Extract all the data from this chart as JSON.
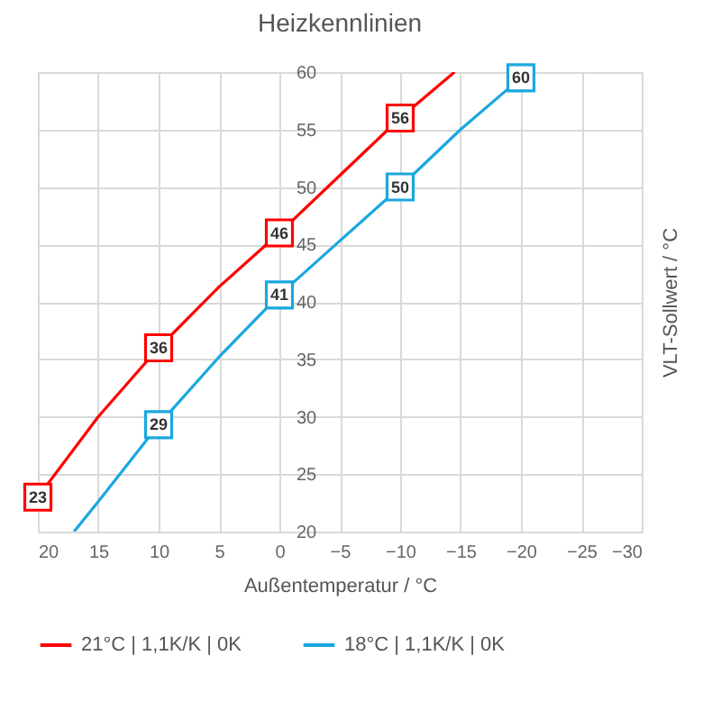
{
  "chart_data": {
    "type": "line",
    "title": "Heizkennlinien",
    "xlabel": "Außentemperatur / °C",
    "ylabel": "VLT-Sollwert / °C",
    "xlim": [
      20,
      -30
    ],
    "xticks": [
      20,
      15,
      10,
      5,
      0,
      -5,
      -10,
      -15,
      -20,
      -25,
      -30
    ],
    "ylim": [
      20,
      60
    ],
    "yticks": [
      20,
      25,
      30,
      35,
      40,
      45,
      50,
      55,
      60
    ],
    "grid": true,
    "legend": "bottom",
    "line_style": "solid",
    "series": [
      {
        "name": "21°C | 1,1K/K | 0K",
        "color": "#ff0000",
        "x": [
          20,
          15,
          10,
          5,
          0,
          -5,
          -10,
          -14.5
        ],
        "values": [
          23,
          30,
          36,
          41.3,
          46,
          51,
          56,
          60
        ],
        "value_labels": [
          "23",
          null,
          "36",
          null,
          "46",
          null,
          "56",
          null
        ]
      },
      {
        "name": "18°C | 1,1K/K | 0K",
        "color": "#1aa7e0",
        "x": [
          17,
          15,
          10,
          5,
          0,
          -5,
          -10,
          -15,
          -20
        ],
        "values": [
          20,
          22.6,
          29.3,
          35.2,
          40.6,
          45.3,
          50,
          55,
          59.5
        ],
        "value_labels": [
          null,
          null,
          "29",
          null,
          "41",
          null,
          "50",
          null,
          "60"
        ]
      }
    ]
  }
}
